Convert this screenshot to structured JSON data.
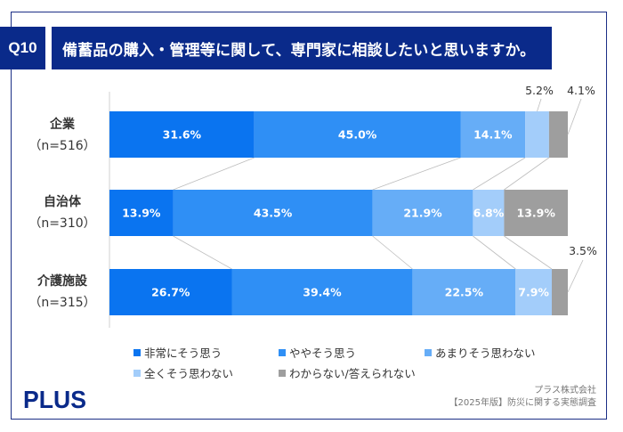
{
  "header": {
    "question_no": "Q10",
    "title": "備蓄品の購入・管理等に関して、専門家に相談したいと思いますか。"
  },
  "chart_data": {
    "type": "bar",
    "orientation": "horizontal-stacked-100",
    "title": "備蓄品の購入・管理等に関して、専門家に相談したいと思いますか。",
    "xlabel": "",
    "ylabel": "",
    "xlim": [
      0,
      100
    ],
    "grid": false,
    "legend_position": "bottom",
    "categories": [
      {
        "name": "企業",
        "n": "（n=516）"
      },
      {
        "name": "自治体",
        "n": "（n=310）"
      },
      {
        "name": "介護施設",
        "n": "（n=315）"
      }
    ],
    "series": [
      {
        "name": "非常にそう思う",
        "color": "#0a74f0",
        "values": [
          31.6,
          13.9,
          26.7
        ]
      },
      {
        "name": "ややそう思う",
        "color": "#2f8ff5",
        "values": [
          45.0,
          43.5,
          39.4
        ]
      },
      {
        "name": "あまりそう思わない",
        "color": "#66adf7",
        "values": [
          14.1,
          21.9,
          22.5
        ]
      },
      {
        "name": "全くそう思わない",
        "color": "#a3cdfa",
        "values": [
          5.2,
          6.8,
          7.9
        ]
      },
      {
        "name": "わからない/答えられない",
        "color": "#9e9e9e",
        "values": [
          4.1,
          13.9,
          3.5
        ]
      }
    ],
    "data_labels": [
      [
        "31.6%",
        "45.0%",
        "14.1%",
        "5.2%",
        "4.1%"
      ],
      [
        "13.9%",
        "43.5%",
        "21.9%",
        "6.8%",
        "13.9%"
      ],
      [
        "26.7%",
        "39.4%",
        "22.5%",
        "7.9%",
        "3.5%"
      ]
    ],
    "outside_labels": [
      {
        "row": 0,
        "series": 3,
        "text": "5.2%"
      },
      {
        "row": 0,
        "series": 4,
        "text": "4.1%"
      },
      {
        "row": 2,
        "series": 4,
        "text": "3.5%"
      }
    ]
  },
  "footer": {
    "logo": "PLUS",
    "company": "プラス株式会社",
    "source": "【2025年版】防災に関する実態調査"
  }
}
